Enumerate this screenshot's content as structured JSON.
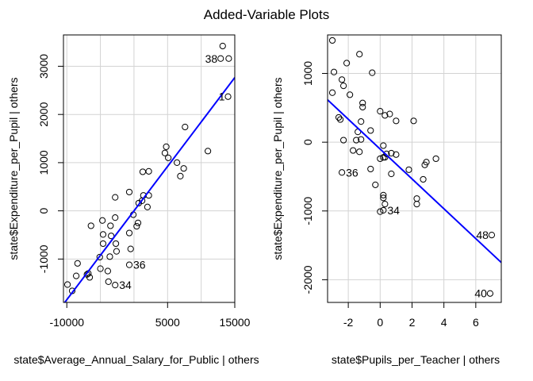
{
  "title": "Added-Variable Plots",
  "chart_data": [
    {
      "type": "scatter",
      "xlabel": "state$Average_Annual_Salary_for_Public | others",
      "ylabel": "state$Expenditure_per_Pupil  | others",
      "xlim": [
        -10500,
        15000
      ],
      "ylim": [
        -1900,
        3650
      ],
      "xticks": [
        -10000,
        5000,
        15000
      ],
      "yticks": [
        -1000,
        0,
        1000,
        2000,
        3000
      ],
      "grid_x": [
        -10000,
        -5000,
        0,
        5000,
        10000,
        15000
      ],
      "grid_y": [
        -1000,
        0,
        1000,
        2000,
        3000
      ],
      "fit_line": {
        "intercept": 0,
        "slope": 0.1844
      },
      "points": [
        [
          13200,
          3420
        ],
        [
          12900,
          3160
        ],
        [
          14100,
          3160
        ],
        [
          14000,
          2370
        ],
        [
          11000,
          1240
        ],
        [
          7600,
          1740
        ],
        [
          6400,
          1000
        ],
        [
          7400,
          880
        ],
        [
          6900,
          720
        ],
        [
          4800,
          1330
        ],
        [
          4600,
          1200
        ],
        [
          5100,
          1100
        ],
        [
          2200,
          820
        ],
        [
          1300,
          810
        ],
        [
          -700,
          390
        ],
        [
          1400,
          320
        ],
        [
          2200,
          320
        ],
        [
          1200,
          210
        ],
        [
          700,
          160
        ],
        [
          2000,
          80
        ],
        [
          -100,
          -80
        ],
        [
          600,
          -250
        ],
        [
          400,
          -320
        ],
        [
          -2800,
          280
        ],
        [
          -2800,
          -140
        ],
        [
          -4700,
          -200
        ],
        [
          -3500,
          -310
        ],
        [
          -6400,
          -310
        ],
        [
          -4600,
          -490
        ],
        [
          -3400,
          -520
        ],
        [
          -700,
          -460
        ],
        [
          -2700,
          -680
        ],
        [
          -4600,
          -680
        ],
        [
          -2600,
          -840
        ],
        [
          -500,
          -790
        ],
        [
          -3600,
          -950
        ],
        [
          -5100,
          -960
        ],
        [
          -700,
          -1120
        ],
        [
          -6800,
          -1300
        ],
        [
          -7000,
          -1320
        ],
        [
          -6600,
          -1380
        ],
        [
          -5000,
          -1200
        ],
        [
          -3900,
          -1250
        ],
        [
          -8400,
          -1090
        ],
        [
          -8600,
          -1350
        ],
        [
          -3800,
          -1470
        ],
        [
          -2800,
          -1540
        ],
        [
          -9900,
          -1530
        ],
        [
          -9200,
          -1660
        ]
      ],
      "point_labels": [
        {
          "text": "38",
          "x": 12900,
          "y": 3160,
          "side": "left"
        },
        {
          "text": "1",
          "x": 14000,
          "y": 2370,
          "side": "left"
        },
        {
          "text": "36",
          "x": -700,
          "y": -1120,
          "side": "right"
        },
        {
          "text": "34",
          "x": -2800,
          "y": -1540,
          "side": "right"
        }
      ]
    },
    {
      "type": "scatter",
      "xlabel": "state$Pupils_per_Teacher | others",
      "ylabel": "state$Expenditure_per_Pupil  | others",
      "xlim": [
        -3.3,
        7.6
      ],
      "ylim": [
        -2330,
        1560
      ],
      "xticks": [
        -2,
        0,
        2,
        4,
        6
      ],
      "yticks": [
        -2000,
        -1000,
        0,
        1000
      ],
      "grid_x": [
        -2,
        0,
        2,
        4,
        6
      ],
      "grid_y": [
        -2000,
        -1000,
        0,
        1000
      ],
      "fit_line": {
        "intercept": -100,
        "slope": -217
      },
      "points": [
        [
          -3.0,
          1480
        ],
        [
          -2.9,
          1020
        ],
        [
          -2.1,
          1150
        ],
        [
          -2.4,
          910
        ],
        [
          -2.3,
          820
        ],
        [
          -1.3,
          1280
        ],
        [
          -0.5,
          1010
        ],
        [
          -3.0,
          720
        ],
        [
          -1.9,
          690
        ],
        [
          -1.1,
          570
        ],
        [
          -1.1,
          510
        ],
        [
          0.0,
          450
        ],
        [
          0.3,
          390
        ],
        [
          0.6,
          410
        ],
        [
          1.0,
          310
        ],
        [
          2.1,
          310
        ],
        [
          -2.6,
          360
        ],
        [
          -2.5,
          330
        ],
        [
          -1.2,
          300
        ],
        [
          -1.4,
          150
        ],
        [
          -0.6,
          170
        ],
        [
          -2.3,
          30
        ],
        [
          -1.5,
          30
        ],
        [
          -1.2,
          40
        ],
        [
          -1.7,
          -120
        ],
        [
          -1.3,
          -140
        ],
        [
          0.2,
          -50
        ],
        [
          0.4,
          -170
        ],
        [
          0.2,
          -220
        ],
        [
          0.0,
          -240
        ],
        [
          0.3,
          -220
        ],
        [
          0.7,
          -160
        ],
        [
          1.0,
          -180
        ],
        [
          -0.6,
          -390
        ],
        [
          1.8,
          -400
        ],
        [
          0.7,
          -460
        ],
        [
          2.8,
          -330
        ],
        [
          2.9,
          -290
        ],
        [
          3.5,
          -240
        ],
        [
          -2.4,
          -440
        ],
        [
          -0.3,
          -620
        ],
        [
          2.7,
          -540
        ],
        [
          0.2,
          -770
        ],
        [
          0.2,
          -810
        ],
        [
          0.3,
          -900
        ],
        [
          2.3,
          -820
        ],
        [
          2.3,
          -900
        ],
        [
          0.0,
          -1010
        ],
        [
          0.2,
          -990
        ],
        [
          7.0,
          -1350
        ],
        [
          6.9,
          -2200
        ]
      ],
      "point_labels": [
        {
          "text": "36",
          "x": -2.4,
          "y": -440,
          "side": "right"
        },
        {
          "text": "34",
          "x": 0.2,
          "y": -990,
          "side": "right"
        },
        {
          "text": "48",
          "x": 7.0,
          "y": -1350,
          "side": "left"
        },
        {
          "text": "40",
          "x": 6.9,
          "y": -2200,
          "side": "left"
        }
      ]
    }
  ]
}
